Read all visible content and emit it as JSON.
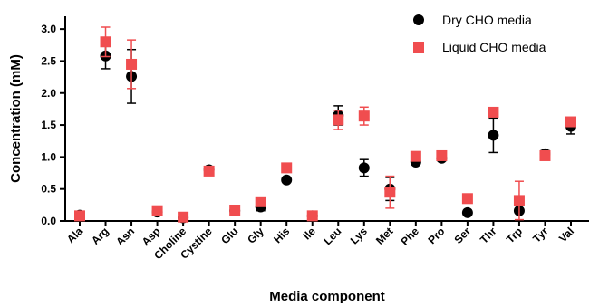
{
  "chart_data": {
    "type": "scatter",
    "xlabel": "Media component",
    "ylabel": "Concentration (mM)",
    "ylim": [
      0,
      3.2
    ],
    "yticks": [
      "0.0",
      "0.5",
      "1.0",
      "1.5",
      "2.0",
      "2.5",
      "3.0"
    ],
    "categories": [
      "Ala",
      "Arg",
      "Asn",
      "Asp",
      "Choline",
      "Cystine",
      "Glu",
      "Gly",
      "His",
      "Ile",
      "Leu",
      "Lys",
      "Met",
      "Phe",
      "Pro",
      "Ser",
      "Thr",
      "Trp",
      "Tyr",
      "Val"
    ],
    "legend_position": "top-right",
    "series": [
      {
        "name": "Dry CHO media",
        "color": "#000000",
        "marker": "circle",
        "values": [
          0.09,
          2.58,
          2.26,
          0.14,
          0.05,
          0.8,
          0.16,
          0.22,
          0.64,
          0.08,
          1.65,
          0.83,
          0.5,
          0.92,
          0.98,
          0.13,
          1.34,
          0.16,
          1.05,
          1.48
        ],
        "errors": [
          0.03,
          0.2,
          0.42,
          0.03,
          0.02,
          0.05,
          0.04,
          0.06,
          0.03,
          0.02,
          0.15,
          0.13,
          0.18,
          0.04,
          0.04,
          0.02,
          0.27,
          0.03,
          0.05,
          0.12
        ]
      },
      {
        "name": "Liquid CHO media",
        "color": "#f04d4f",
        "marker": "square",
        "values": [
          0.08,
          2.8,
          2.45,
          0.16,
          0.06,
          0.78,
          0.17,
          0.3,
          0.83,
          0.08,
          1.58,
          1.64,
          0.45,
          1.01,
          1.02,
          0.35,
          1.7,
          0.32,
          1.02,
          1.55
        ],
        "errors": [
          0.02,
          0.23,
          0.38,
          0.04,
          0.02,
          0.04,
          0.04,
          0.04,
          0.04,
          0.02,
          0.15,
          0.14,
          0.25,
          0.04,
          0.03,
          0.03,
          0.05,
          0.3,
          0.04,
          0.06
        ]
      }
    ]
  }
}
